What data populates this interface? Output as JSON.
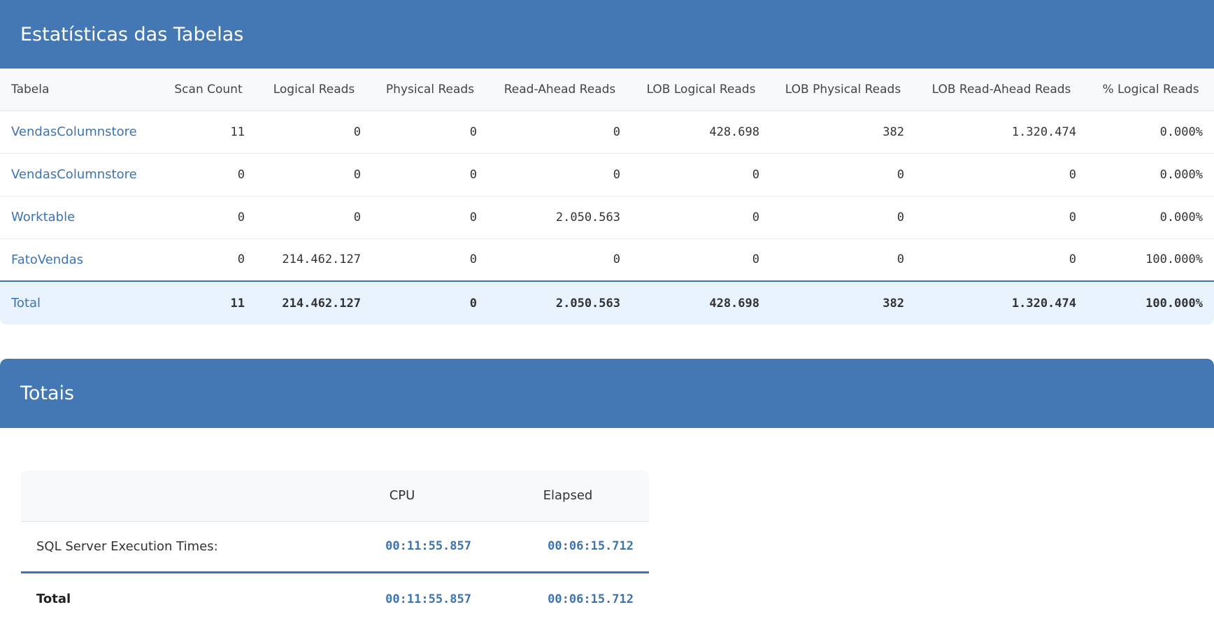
{
  "tables_section": {
    "title": "Estatísticas das Tabelas",
    "columns": [
      "Tabela",
      "Scan Count",
      "Logical Reads",
      "Physical Reads",
      "Read-Ahead Reads",
      "LOB Logical Reads",
      "LOB Physical Reads",
      "LOB Read-Ahead Reads",
      "% Logical Reads"
    ],
    "rows": [
      [
        "VendasColumnstore",
        "11",
        "0",
        "0",
        "0",
        "428.698",
        "382",
        "1.320.474",
        "0.000%"
      ],
      [
        "VendasColumnstore",
        "0",
        "0",
        "0",
        "0",
        "0",
        "0",
        "0",
        "0.000%"
      ],
      [
        "Worktable",
        "0",
        "0",
        "0",
        "2.050.563",
        "0",
        "0",
        "0",
        "0.000%"
      ],
      [
        "FatoVendas",
        "0",
        "214.462.127",
        "0",
        "0",
        "0",
        "0",
        "0",
        "100.000%"
      ]
    ],
    "total": [
      "Total",
      "11",
      "214.462.127",
      "0",
      "2.050.563",
      "428.698",
      "382",
      "1.320.474",
      "100.000%"
    ]
  },
  "totals_section": {
    "title": "Totais",
    "columns": [
      "",
      "CPU",
      "Elapsed"
    ],
    "exec_row": {
      "label": "SQL Server Execution Times:",
      "cpu": "00:11:55.857",
      "elapsed": "00:06:15.712"
    },
    "total_row": {
      "label": "Total",
      "cpu": "00:11:55.857",
      "elapsed": "00:06:15.712"
    }
  },
  "colors": {
    "header_bg": "#4478b4",
    "link": "#3d74b0",
    "total_row_bg": "#e8f2fc"
  }
}
